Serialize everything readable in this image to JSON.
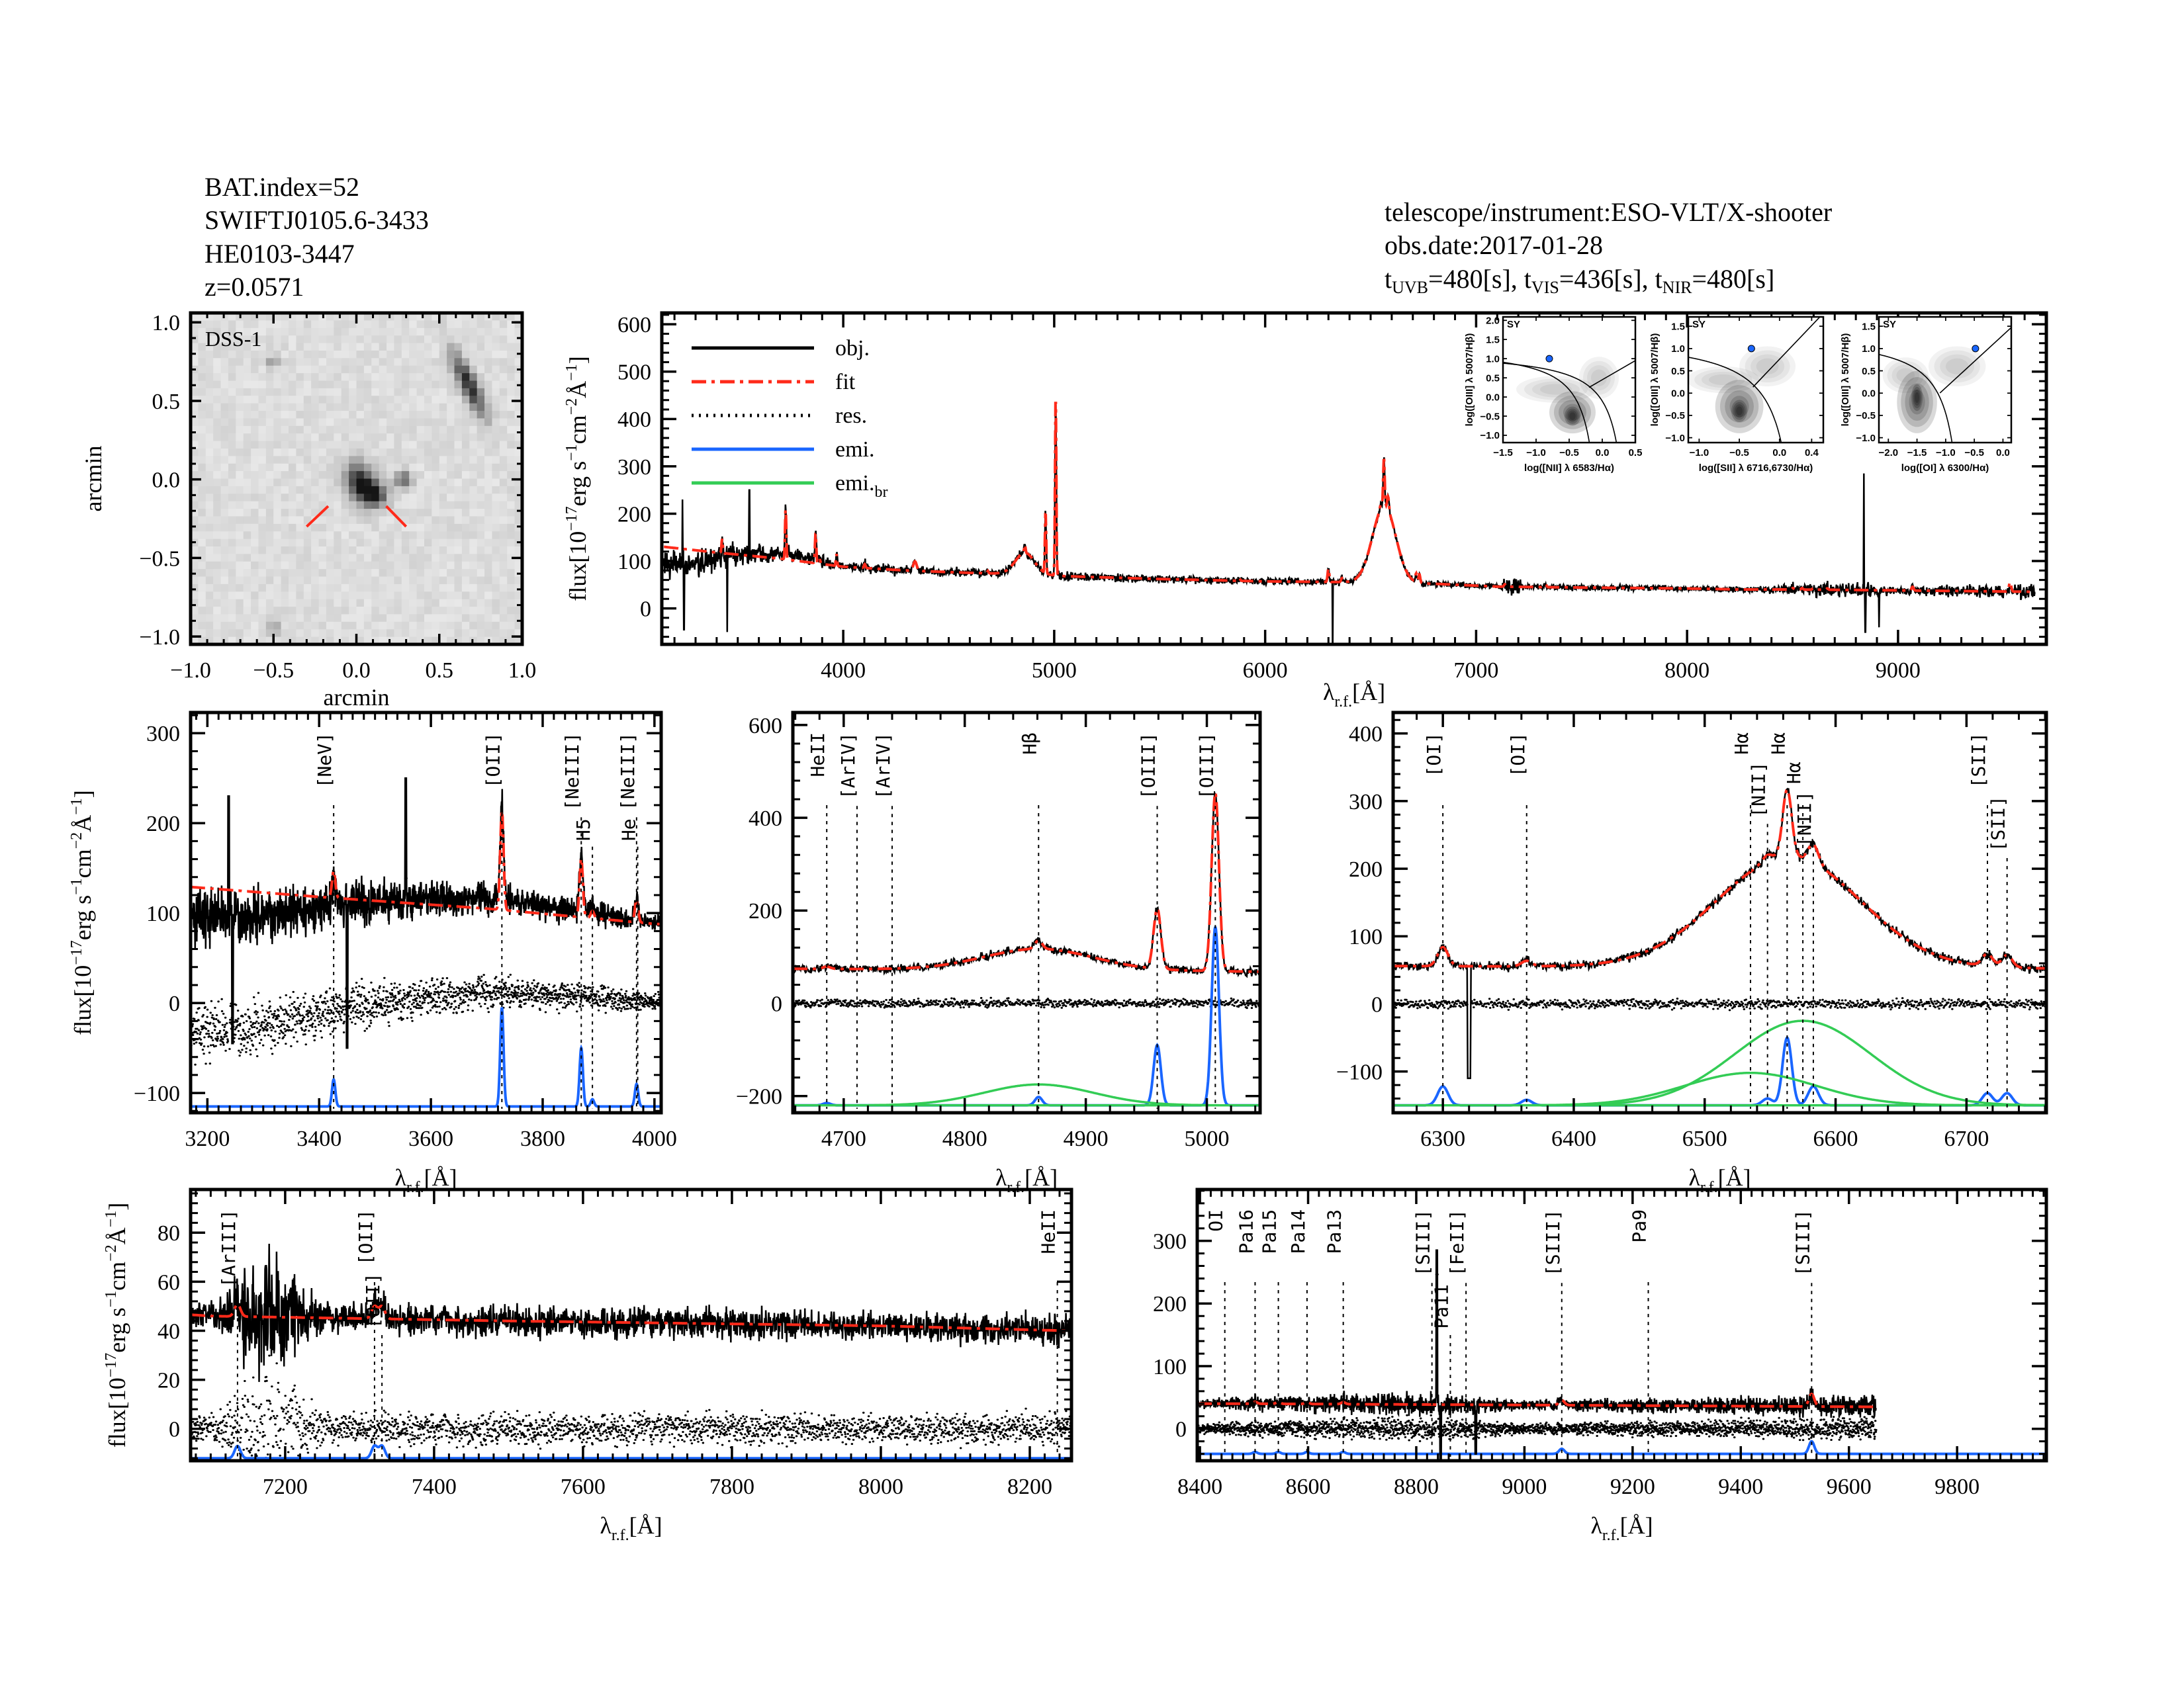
{
  "header": {
    "bat_index": "BAT.index=52",
    "swift_name": "SWIFTJ0105.6-3433",
    "counterpart": "HE0103-3447",
    "redshift": "z=0.0571",
    "instrument": "telescope/instrument:ESO-VLT/X-shooter",
    "obs_date": "obs.date:2017-01-28",
    "exposures": [
      {
        "sym": "t",
        "sub": "UVB",
        "val": "=480[s],"
      },
      {
        "sym": "t",
        "sub": "VIS",
        "val": "=436[s],"
      },
      {
        "sym": "t",
        "sub": "NIR",
        "val": "=480[s]"
      }
    ]
  },
  "colors": {
    "obj": "#000000",
    "fit": "#ff2a1a",
    "res": "#000000",
    "emi": "#1a66ff",
    "emi_br": "#33cc55",
    "red_label": "#ff2a1a",
    "sy": "#1a66ff"
  },
  "legend": [
    {
      "key": "obj",
      "label": "obj.",
      "sub": "",
      "style": "solid"
    },
    {
      "key": "fit",
      "label": "fit",
      "sub": "",
      "style": "dashdot"
    },
    {
      "key": "res",
      "label": "res.",
      "sub": "",
      "style": "dotted"
    },
    {
      "key": "emi",
      "label": "emi.",
      "sub": "",
      "style": "solid"
    },
    {
      "key": "emi_br",
      "label": "emi.",
      "sub": "br",
      "style": "solid"
    }
  ],
  "flux_label": [
    [
      "flux[10",
      ""
    ],
    [
      "−17",
      "sup"
    ],
    [
      "erg s",
      ""
    ],
    [
      "−1",
      "sup"
    ],
    [
      "cm",
      ""
    ],
    [
      "−2",
      "sup"
    ],
    [
      "Å",
      ""
    ],
    [
      "−1",
      "sup"
    ],
    [
      "]",
      ""
    ]
  ],
  "wave_label": {
    "sym": "λ",
    "sub": "r.f.",
    "unit": "[Å]"
  },
  "spectrum_model": {
    "data_range": [
      3150,
      9650
    ],
    "continuum": [
      [
        3150,
        130
      ],
      [
        3400,
        118
      ],
      [
        3700,
        105
      ],
      [
        4000,
        88
      ],
      [
        4300,
        80
      ],
      [
        4600,
        75
      ],
      [
        4900,
        72
      ],
      [
        5050,
        68
      ],
      [
        5500,
        62
      ],
      [
        6000,
        57
      ],
      [
        6500,
        55
      ],
      [
        6800,
        52
      ],
      [
        7100,
        46
      ],
      [
        7500,
        44
      ],
      [
        8000,
        42
      ],
      [
        8250,
        40
      ],
      [
        8500,
        40
      ],
      [
        9000,
        38
      ],
      [
        9650,
        35
      ]
    ],
    "narrow_lines": [
      [
        3426,
        30,
        3
      ],
      [
        3727,
        110,
        3
      ],
      [
        3869,
        65,
        3
      ],
      [
        3889,
        8,
        3
      ],
      [
        3968,
        25,
        3
      ],
      [
        4102,
        8,
        4
      ],
      [
        4340,
        20,
        8
      ],
      [
        4686,
        5,
        3
      ],
      [
        4861,
        18,
        3
      ],
      [
        4959,
        130,
        3
      ],
      [
        5007,
        385,
        3
      ],
      [
        5876,
        6,
        5
      ],
      [
        6300,
        28,
        4
      ],
      [
        6364,
        8,
        4
      ],
      [
        6548,
        10,
        4
      ],
      [
        6563,
        100,
        3.5
      ],
      [
        6583,
        28,
        4
      ],
      [
        6716,
        18,
        4
      ],
      [
        6731,
        18,
        4
      ],
      [
        7136,
        5,
        4
      ],
      [
        7320,
        5,
        4
      ],
      [
        7330,
        5,
        4
      ],
      [
        8502,
        3,
        4
      ],
      [
        8545,
        3,
        4
      ],
      [
        8598,
        3,
        4
      ],
      [
        8665,
        3,
        4
      ],
      [
        9069,
        8,
        5
      ],
      [
        9531,
        20,
        5
      ]
    ],
    "broad_lines": [
      [
        4861,
        45,
        45
      ],
      [
        6575,
        125,
        52
      ],
      [
        6535,
        48,
        50
      ]
    ],
    "noise_sigma": [
      [
        3150,
        16
      ],
      [
        3600,
        10
      ],
      [
        4000,
        5
      ],
      [
        5200,
        4
      ],
      [
        7100,
        3
      ],
      [
        7180,
        12
      ],
      [
        7250,
        3
      ],
      [
        8300,
        3
      ],
      [
        8800,
        9
      ],
      [
        9000,
        4
      ],
      [
        9500,
        7
      ],
      [
        9650,
        9
      ]
    ],
    "residual_trend": [
      [
        3150,
        -35
      ],
      [
        3300,
        -25
      ],
      [
        3500,
        0
      ],
      [
        3700,
        12
      ],
      [
        4050,
        0
      ],
      [
        9650,
        0
      ]
    ],
    "spikes": [
      [
        3238,
        230
      ],
      [
        3245,
        -45
      ],
      [
        3450,
        -50
      ],
      [
        3555,
        250
      ],
      [
        6320,
        -110
      ],
      [
        8838,
        285
      ],
      [
        8845,
        -50
      ],
      [
        8910,
        -40
      ]
    ]
  },
  "chart_data": [
    {
      "id": "dss_image",
      "type": "heatmap",
      "title": "DSS-1",
      "xlabel": "arcmin",
      "ylabel": "arcmin",
      "xlim": [
        -1.0,
        1.0
      ],
      "ylim": [
        -1.05,
        1.06
      ],
      "xticks": [
        -1.0,
        -0.5,
        0.0,
        0.5,
        1.0
      ],
      "xticklabels": [
        "−1.0",
        "−0.5",
        "0.0",
        "0.5",
        "1.0"
      ],
      "yticks": [
        -1.0,
        -0.5,
        0.0,
        0.5,
        1.0
      ],
      "yticklabels": [
        "−1.0",
        "−0.5",
        "0.0",
        "0.5",
        "1.0"
      ],
      "sources": [
        [
          0.03,
          -0.03,
          1.0,
          0.06,
          0.09,
          20
        ],
        [
          0.12,
          -0.1,
          0.6,
          0.05,
          0.05,
          0
        ],
        [
          0.28,
          0.0,
          0.6,
          0.035,
          0.035,
          0
        ],
        [
          0.68,
          0.6,
          0.9,
          0.035,
          0.15,
          25
        ],
        [
          -0.5,
          0.75,
          0.3,
          0.03,
          0.03,
          0
        ],
        [
          -0.5,
          -0.95,
          0.3,
          0.03,
          0.03,
          0
        ]
      ],
      "markers": [
        [
          [
            -0.3,
            -0.3
          ],
          [
            -0.17,
            -0.17
          ]
        ],
        [
          [
            0.18,
            -0.17
          ],
          [
            0.3,
            -0.3
          ]
        ]
      ]
    },
    {
      "id": "spec_full",
      "type": "line",
      "xlim": [
        3140,
        9703
      ],
      "ylim": [
        -76,
        624
      ],
      "xticks": [
        4000,
        5000,
        6000,
        7000,
        8000,
        9000
      ],
      "xticklabels": [
        "4000",
        "5000",
        "6000",
        "7000",
        "8000",
        "9000"
      ],
      "yticks": [
        0,
        100,
        200,
        300,
        400,
        500,
        600
      ],
      "yticklabels": [
        "0",
        "100",
        "200",
        "300",
        "400",
        "500",
        "600"
      ],
      "series": [
        "obj",
        "fit"
      ],
      "legend_position": "top-left",
      "lines": []
    },
    {
      "id": "bpt_nii",
      "type": "scatter",
      "label": "SY",
      "xlabel": "log([NII] λ 6583/Hα)",
      "ylabel": "log([OIII] λ 5007/Hβ)",
      "xlim": [
        -1.5,
        0.5
      ],
      "ylim": [
        -1.19,
        2.09
      ],
      "xticks": [
        -1.5,
        -1.0,
        -0.5,
        0.0,
        0.5
      ],
      "xticklabels": [
        "−1.5",
        "−1.0",
        "−0.5",
        "0.0",
        "0.5"
      ],
      "yticks": [
        -1.0,
        -0.5,
        0.0,
        0.5,
        1.0,
        1.5,
        2.0
      ],
      "yticklabels": [
        "−1.0",
        "−0.5",
        "0.0",
        "0.5",
        "1.0",
        "1.5",
        "2.0"
      ],
      "point": [
        -0.8,
        1.0
      ],
      "density": [
        [
          -0.45,
          -0.4,
          0.35,
          0.55,
          3
        ],
        [
          -0.7,
          0.2,
          0.6,
          0.35,
          1
        ],
        [
          -0.05,
          0.5,
          0.3,
          0.55,
          1
        ],
        [
          -0.45,
          -0.5,
          0.12,
          0.25,
          4
        ]
      ],
      "curves": [
        {
          "a": 0.61,
          "b": -0.47,
          "c": 1.19
        },
        {
          "a": 0.61,
          "b": -0.05,
          "c": 1.3
        }
      ],
      "seyfert_line": [
        1.0,
        0.45,
        -0.2
      ]
    },
    {
      "id": "bpt_sii",
      "type": "scatter",
      "label": "SY",
      "xlabel": "log([SII] λ 6716,6730/Hα)",
      "ylabel": "log([OIII] λ 5007/Hβ)",
      "xlim": [
        -1.135,
        0.545
      ],
      "ylim": [
        -1.11,
        1.71
      ],
      "xticks": [
        -1.0,
        -0.5,
        0.0,
        0.4
      ],
      "xticklabels": [
        "−1.0",
        "−0.5",
        "0.0",
        "0.4"
      ],
      "yticks": [
        -1.0,
        -0.5,
        0.0,
        0.5,
        1.0,
        1.5
      ],
      "yticklabels": [
        "−1.0",
        "−0.5",
        "0.0",
        "0.5",
        "1.0",
        "1.5"
      ],
      "point": [
        -0.35,
        1.0
      ],
      "density": [
        [
          -0.5,
          -0.3,
          0.3,
          0.6,
          3
        ],
        [
          -0.7,
          0.3,
          0.45,
          0.3,
          1
        ],
        [
          -0.15,
          0.6,
          0.35,
          0.45,
          1
        ],
        [
          -0.5,
          -0.4,
          0.1,
          0.25,
          4
        ]
      ],
      "curves": [
        {
          "a": 0.72,
          "b": -0.32,
          "c": 1.3
        }
      ],
      "seyfert_line": [
        1.89,
        0.76,
        -0.33
      ]
    },
    {
      "id": "bpt_oi",
      "type": "scatter",
      "label": "SY",
      "xlabel": "log([OI] λ 6300/Hα)",
      "ylabel": "log([OIII] λ 5007/Hβ)",
      "xlim": [
        -2.165,
        0.145
      ],
      "ylim": [
        -1.11,
        1.71
      ],
      "xticks": [
        -2.0,
        -1.5,
        -1.0,
        -0.5,
        0.0
      ],
      "xticklabels": [
        "−2.0",
        "−1.5",
        "−1.0",
        "−0.5",
        "0.0"
      ],
      "yticks": [
        -1.0,
        -0.5,
        0.0,
        0.5,
        1.0,
        1.5
      ],
      "yticklabels": [
        "−1.0",
        "−0.5",
        "0.0",
        "0.5",
        "1.0",
        "1.5"
      ],
      "point": [
        -0.48,
        1.0
      ],
      "density": [
        [
          -1.5,
          -0.2,
          0.35,
          0.7,
          3
        ],
        [
          -1.7,
          0.4,
          0.4,
          0.4,
          1
        ],
        [
          -0.8,
          0.6,
          0.5,
          0.45,
          1
        ],
        [
          -1.5,
          -0.1,
          0.1,
          0.3,
          4
        ]
      ],
      "curves": [
        {
          "a": 0.73,
          "b": 0.59,
          "c": 1.33
        }
      ],
      "seyfert_line": [
        1.18,
        1.3,
        -1.1
      ]
    },
    {
      "id": "zoom_uv",
      "type": "line",
      "xlim": [
        3170,
        4012
      ],
      "ylim": [
        -122,
        323
      ],
      "emi_offset": -115,
      "show_broad": false,
      "xticks": [
        3200,
        3400,
        3600,
        3800,
        4000
      ],
      "xticklabels": [
        "3200",
        "3400",
        "3600",
        "3800",
        "4000"
      ],
      "yticks": [
        -100,
        0,
        100,
        200,
        300
      ],
      "yticklabels": [
        "−100",
        "0",
        "100",
        "200",
        "300"
      ],
      "lines": [
        [
          "[NeV]",
          3426,
          "black"
        ],
        [
          "[OII]",
          3727,
          "black"
        ],
        [
          "[NeIII]",
          3869,
          "black"
        ],
        [
          "H5",
          3889,
          "red"
        ],
        [
          "[NeIII]",
          3968,
          "black"
        ],
        [
          "He",
          3970,
          "red"
        ]
      ]
    },
    {
      "id": "zoom_hb",
      "type": "line",
      "xlim": [
        4658,
        5044
      ],
      "ylim": [
        -236,
        627
      ],
      "emi_offset": -220,
      "show_broad": true,
      "xticks": [
        4700,
        4800,
        4900,
        5000
      ],
      "xticklabels": [
        "4700",
        "4800",
        "4900",
        "5000"
      ],
      "yticks": [
        -200,
        0,
        200,
        400,
        600
      ],
      "yticklabels": [
        "−200",
        "0",
        "200",
        "400",
        "600"
      ],
      "lines": [
        [
          "HeII",
          4686,
          "black"
        ],
        [
          "[ArIV]",
          4711,
          "red"
        ],
        [
          "[ArIV]",
          4740,
          "red"
        ],
        [
          "Hβ",
          4861,
          "black"
        ],
        [
          "[OIII]",
          4959,
          "black"
        ],
        [
          "[OIII]",
          5007,
          "black"
        ]
      ]
    },
    {
      "id": "zoom_ha",
      "type": "line",
      "xlim": [
        6262,
        6761
      ],
      "ylim": [
        -161,
        431
      ],
      "emi_offset": -150,
      "show_broad": true,
      "xticks": [
        6300,
        6400,
        6500,
        6600,
        6700
      ],
      "xticklabels": [
        "6300",
        "6400",
        "6500",
        "6600",
        "6700"
      ],
      "yticks": [
        -100,
        0,
        100,
        200,
        300,
        400
      ],
      "yticklabels": [
        "−100",
        "0",
        "100",
        "200",
        "300",
        "400"
      ],
      "lines": [
        [
          "[OI]",
          6300,
          "black"
        ],
        [
          "[OI]",
          6364,
          "black"
        ],
        [
          "Hα",
          6535,
          "black"
        ],
        [
          "[NII]",
          6548,
          "red"
        ],
        [
          "Hα",
          6563,
          "black"
        ],
        [
          "Hα",
          6575,
          "black"
        ],
        [
          "[NII]",
          6583,
          "black"
        ],
        [
          "[SII]",
          6716,
          "black"
        ],
        [
          "[SII]",
          6731,
          "black"
        ]
      ]
    },
    {
      "id": "zoom_red",
      "type": "line",
      "xlim": [
        7073,
        8256
      ],
      "ylim": [
        -13,
        97.6
      ],
      "emi_offset": -12,
      "show_broad": false,
      "xticks": [
        7200,
        7400,
        7600,
        7800,
        8000,
        8200
      ],
      "xticklabels": [
        "7200",
        "7400",
        "7600",
        "7800",
        "8000",
        "8200"
      ],
      "yticks": [
        0,
        20,
        40,
        60,
        80
      ],
      "yticklabels": [
        "0",
        "20",
        "40",
        "60",
        "80"
      ],
      "lines": [
        [
          "[ArIII]",
          7136,
          "red"
        ],
        [
          "[OII]",
          7320,
          "red"
        ],
        [
          "[OII]",
          7330,
          "red"
        ],
        [
          "HeII",
          8237,
          "red"
        ]
      ]
    },
    {
      "id": "zoom_nir",
      "type": "line",
      "xlim": [
        8395,
        9965
      ],
      "ylim": [
        -51,
        382
      ],
      "emi_offset": -40,
      "show_broad": false,
      "xticks": [
        8400,
        8600,
        8800,
        9000,
        9200,
        9400,
        9600,
        9800
      ],
      "xticklabels": [
        "8400",
        "8600",
        "8800",
        "9000",
        "9200",
        "9400",
        "9600",
        "9800"
      ],
      "yticks": [
        0,
        100,
        200,
        300
      ],
      "yticklabels": [
        "0",
        "100",
        "200",
        "300"
      ],
      "lines": [
        [
          "OI",
          8446,
          "red"
        ],
        [
          "Pa16",
          8502,
          "black"
        ],
        [
          "Pa15",
          8545,
          "red"
        ],
        [
          "Pa14",
          8598,
          "red"
        ],
        [
          "Pa13",
          8665,
          "red"
        ],
        [
          "[SIII]",
          8829,
          "red"
        ],
        [
          "Pa11",
          8863,
          "red"
        ],
        [
          "[FeII]",
          8892,
          "red"
        ],
        [
          "[SIII]",
          9069,
          "black"
        ],
        [
          "Pa9",
          9229,
          "red"
        ],
        [
          "[SIII]",
          9531,
          "black"
        ]
      ]
    }
  ]
}
